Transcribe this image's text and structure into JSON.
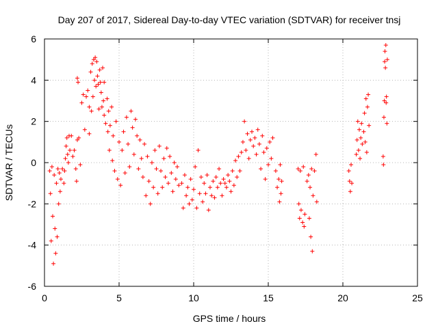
{
  "chart_data": {
    "type": "scatter",
    "title": "Day 207 of 2017, Sidereal Day-to-day VTEC variation (SDTVAR) for receiver tnsj",
    "xlabel": "GPS time / hours",
    "ylabel": "SDTVAR / TECUs",
    "xlim": [
      0,
      25
    ],
    "ylim": [
      -6,
      6
    ],
    "x_ticks": [
      "0",
      "5",
      "10",
      "15",
      "20",
      "25"
    ],
    "y_ticks": [
      "-6",
      "-4",
      "-2",
      "0",
      "2",
      "4",
      "6"
    ],
    "grid": true,
    "marker": "+",
    "color": "#ff0000",
    "series": [
      {
        "name": "SDTVAR",
        "points": [
          [
            0.35,
            -0.4
          ],
          [
            0.4,
            -1.5
          ],
          [
            0.45,
            -3.8
          ],
          [
            0.5,
            -0.2
          ],
          [
            0.55,
            -2.6
          ],
          [
            0.6,
            -4.9
          ],
          [
            0.65,
            -0.6
          ],
          [
            0.7,
            -3.2
          ],
          [
            0.75,
            -4.4
          ],
          [
            0.8,
            -1.0
          ],
          [
            0.85,
            -3.6
          ],
          [
            0.9,
            -0.3
          ],
          [
            0.95,
            -2.0
          ],
          [
            1.0,
            -0.5
          ],
          [
            1.05,
            -1.4
          ],
          [
            1.1,
            -0.8
          ],
          [
            1.2,
            -0.3
          ],
          [
            1.3,
            -1.0
          ],
          [
            1.35,
            -0.4
          ],
          [
            1.4,
            0.2
          ],
          [
            1.45,
            0.8
          ],
          [
            1.5,
            1.2
          ],
          [
            1.55,
            0.4
          ],
          [
            1.6,
            0.0
          ],
          [
            1.65,
            1.3
          ],
          [
            1.7,
            0.6
          ],
          [
            1.8,
            1.3
          ],
          [
            1.9,
            0.3
          ],
          [
            2.0,
            0.6
          ],
          [
            2.1,
            -0.3
          ],
          [
            2.15,
            -0.9
          ],
          [
            2.2,
            1.1
          ],
          [
            2.2,
            4.1
          ],
          [
            2.25,
            3.9
          ],
          [
            2.3,
            1.2
          ],
          [
            2.4,
            -0.1
          ],
          [
            2.5,
            2.9
          ],
          [
            2.6,
            3.3
          ],
          [
            2.7,
            1.6
          ],
          [
            2.8,
            3.2
          ],
          [
            2.9,
            3.5
          ],
          [
            3.0,
            2.7
          ],
          [
            3.0,
            1.4
          ],
          [
            3.1,
            4.4
          ],
          [
            3.15,
            2.5
          ],
          [
            3.2,
            4.8
          ],
          [
            3.25,
            3.2
          ],
          [
            3.3,
            5.0
          ],
          [
            3.35,
            4.0
          ],
          [
            3.4,
            5.1
          ],
          [
            3.45,
            3.7
          ],
          [
            3.5,
            4.9
          ],
          [
            3.55,
            4.2
          ],
          [
            3.6,
            3.8
          ],
          [
            3.65,
            2.6
          ],
          [
            3.7,
            4.5
          ],
          [
            3.75,
            3.9
          ],
          [
            3.8,
            3.4
          ],
          [
            3.85,
            2.7
          ],
          [
            3.9,
            4.6
          ],
          [
            3.95,
            3.0
          ],
          [
            4.0,
            3.9
          ],
          [
            4.0,
            2.3
          ],
          [
            4.1,
            1.9
          ],
          [
            4.2,
            3.1
          ],
          [
            4.25,
            1.5
          ],
          [
            4.3,
            2.5
          ],
          [
            4.35,
            0.6
          ],
          [
            4.4,
            1.8
          ],
          [
            4.5,
            2.7
          ],
          [
            4.55,
            0.1
          ],
          [
            4.6,
            1.3
          ],
          [
            4.7,
            -0.4
          ],
          [
            4.8,
            2.0
          ],
          [
            4.9,
            -0.8
          ],
          [
            5.0,
            1.0
          ],
          [
            5.1,
            -1.1
          ],
          [
            5.2,
            0.6
          ],
          [
            5.3,
            1.5
          ],
          [
            5.4,
            -0.5
          ],
          [
            5.5,
            2.2
          ],
          [
            5.6,
            0.9
          ],
          [
            5.7,
            -0.2
          ],
          [
            5.8,
            2.5
          ],
          [
            5.9,
            1.7
          ],
          [
            6.0,
            0.4
          ],
          [
            6.1,
            2.1
          ],
          [
            6.2,
            1.3
          ],
          [
            6.3,
            -0.3
          ],
          [
            6.4,
            1.1
          ],
          [
            6.5,
            0.2
          ],
          [
            6.6,
            -0.7
          ],
          [
            6.7,
            0.9
          ],
          [
            6.8,
            -1.6
          ],
          [
            6.9,
            0.3
          ],
          [
            7.0,
            -0.9
          ],
          [
            7.1,
            -2.0
          ],
          [
            7.2,
            0.0
          ],
          [
            7.3,
            -1.2
          ],
          [
            7.4,
            0.6
          ],
          [
            7.5,
            -0.3
          ],
          [
            7.6,
            -1.5
          ],
          [
            7.7,
            0.8
          ],
          [
            7.8,
            -0.4
          ],
          [
            7.9,
            -1.2
          ],
          [
            8.0,
            0.2
          ],
          [
            8.1,
            -0.7
          ],
          [
            8.2,
            0.7
          ],
          [
            8.3,
            -1.0
          ],
          [
            8.4,
            0.3
          ],
          [
            8.5,
            -0.5
          ],
          [
            8.6,
            -1.4
          ],
          [
            8.7,
            0.0
          ],
          [
            8.8,
            -0.8
          ],
          [
            8.9,
            -0.2
          ],
          [
            9.0,
            -1.1
          ],
          [
            9.2,
            -1.0
          ],
          [
            9.3,
            -2.2
          ],
          [
            9.4,
            -0.6
          ],
          [
            9.5,
            -1.6
          ],
          [
            9.6,
            -1.2
          ],
          [
            9.7,
            -2.0
          ],
          [
            9.8,
            -0.8
          ],
          [
            9.9,
            -1.8
          ],
          [
            10.0,
            -1.3
          ],
          [
            10.1,
            -0.2
          ],
          [
            10.2,
            -2.2
          ],
          [
            10.3,
            0.6
          ],
          [
            10.4,
            -1.5
          ],
          [
            10.5,
            -0.7
          ],
          [
            10.6,
            -1.9
          ],
          [
            10.7,
            -1.0
          ],
          [
            10.8,
            -1.5
          ],
          [
            10.9,
            -0.6
          ],
          [
            11.0,
            -2.3
          ],
          [
            11.1,
            -1.2
          ],
          [
            11.2,
            -1.6
          ],
          [
            11.3,
            -0.9
          ],
          [
            11.4,
            -1.7
          ],
          [
            11.5,
            -0.7
          ],
          [
            11.6,
            -1.2
          ],
          [
            11.7,
            -0.3
          ],
          [
            11.8,
            -1.0
          ],
          [
            11.9,
            -1.6
          ],
          [
            12.0,
            -0.8
          ],
          [
            12.1,
            -1.0
          ],
          [
            12.2,
            -1.2
          ],
          [
            12.3,
            -0.6
          ],
          [
            12.4,
            -0.9
          ],
          [
            12.5,
            -1.4
          ],
          [
            12.6,
            -0.4
          ],
          [
            12.7,
            -1.1
          ],
          [
            12.8,
            0.1
          ],
          [
            12.9,
            -0.7
          ],
          [
            13.0,
            0.3
          ],
          [
            13.1,
            -0.4
          ],
          [
            13.2,
            0.5
          ],
          [
            13.3,
            1.0
          ],
          [
            13.4,
            2.0
          ],
          [
            13.5,
            0.6
          ],
          [
            13.6,
            1.4
          ],
          [
            13.7,
            0.2
          ],
          [
            13.8,
            1.1
          ],
          [
            13.9,
            1.5
          ],
          [
            14.0,
            0.8
          ],
          [
            14.1,
            1.2
          ],
          [
            14.2,
            0.4
          ],
          [
            14.3,
            1.6
          ],
          [
            14.4,
            0.9
          ],
          [
            14.5,
            -0.3
          ],
          [
            14.6,
            1.3
          ],
          [
            14.7,
            0.5
          ],
          [
            14.8,
            -0.8
          ],
          [
            14.9,
            0.7
          ],
          [
            15.0,
            -0.1
          ],
          [
            15.1,
            1.0
          ],
          [
            15.2,
            0.2
          ],
          [
            15.3,
            1.2
          ],
          [
            15.5,
            -0.4
          ],
          [
            15.6,
            -1.2
          ],
          [
            15.7,
            -0.8
          ],
          [
            15.75,
            -1.9
          ],
          [
            15.8,
            -0.1
          ],
          [
            15.85,
            -1.5
          ],
          [
            15.9,
            -0.9
          ],
          [
            17.0,
            -0.3
          ],
          [
            17.05,
            -2.0
          ],
          [
            17.1,
            -2.7
          ],
          [
            17.15,
            -0.4
          ],
          [
            17.2,
            -2.3
          ],
          [
            17.3,
            -2.9
          ],
          [
            17.35,
            -0.2
          ],
          [
            17.4,
            -3.1
          ],
          [
            17.45,
            -2.5
          ],
          [
            17.6,
            -0.9
          ],
          [
            17.7,
            -0.6
          ],
          [
            17.75,
            -2.7
          ],
          [
            17.8,
            -1.2
          ],
          [
            17.85,
            -3.6
          ],
          [
            17.9,
            -0.3
          ],
          [
            17.95,
            -4.3
          ],
          [
            18.0,
            -1.6
          ],
          [
            18.1,
            -0.4
          ],
          [
            18.2,
            0.4
          ],
          [
            18.25,
            -1.9
          ],
          [
            20.4,
            -0.4
          ],
          [
            20.45,
            -0.9
          ],
          [
            20.5,
            -1.4
          ],
          [
            20.55,
            -0.1
          ],
          [
            20.6,
            -1.0
          ],
          [
            20.9,
            0.4
          ],
          [
            20.95,
            1.1
          ],
          [
            21.0,
            2.0
          ],
          [
            21.05,
            0.6
          ],
          [
            21.1,
            1.6
          ],
          [
            21.15,
            0.2
          ],
          [
            21.2,
            1.2
          ],
          [
            21.25,
            1.9
          ],
          [
            21.3,
            0.9
          ],
          [
            21.4,
            1.5
          ],
          [
            21.45,
            2.4
          ],
          [
            21.5,
            1.0
          ],
          [
            21.55,
            3.1
          ],
          [
            21.6,
            0.5
          ],
          [
            21.65,
            2.7
          ],
          [
            21.7,
            3.3
          ],
          [
            21.75,
            1.8
          ],
          [
            22.7,
            0.3
          ],
          [
            22.72,
            -0.1
          ],
          [
            22.75,
            2.2
          ],
          [
            22.78,
            3.0
          ],
          [
            22.8,
            4.9
          ],
          [
            22.82,
            5.4
          ],
          [
            22.85,
            4.6
          ],
          [
            22.88,
            5.7
          ],
          [
            22.9,
            2.9
          ],
          [
            22.92,
            3.2
          ],
          [
            22.95,
            1.9
          ],
          [
            22.98,
            5.0
          ]
        ]
      }
    ]
  }
}
